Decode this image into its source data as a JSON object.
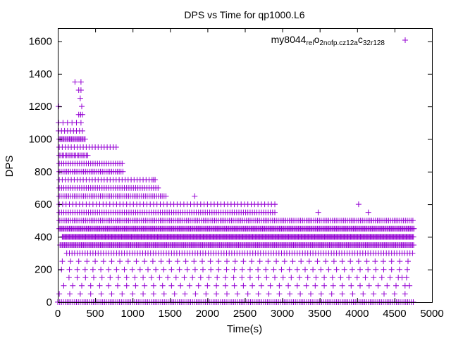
{
  "chart_data": {
    "type": "scatter",
    "title": "DPS vs Time for qp1000.L6",
    "xlabel": "Time(s)",
    "ylabel": "DPS",
    "xlim": [
      0,
      5000
    ],
    "ylim": [
      0,
      1680
    ],
    "xticks": [
      0,
      500,
      1000,
      1500,
      2000,
      2500,
      3000,
      3500,
      4000,
      4500,
      5000
    ],
    "yticks": [
      0,
      200,
      400,
      600,
      800,
      1000,
      1200,
      1400,
      1600
    ],
    "grid": false,
    "legend_position": "top-right",
    "marker": "plus",
    "color": "#9400d3",
    "series": [
      {
        "name": "my8044_rel_o2nofp.cz12a_c32r128",
        "name_parts": [
          {
            "text": "my8044",
            "sub": false
          },
          {
            "text": "rel",
            "sub": true
          },
          {
            "text": "o",
            "sub": false
          },
          {
            "text": "2nofp.cz12a",
            "sub": true
          },
          {
            "text": "c",
            "sub": false
          },
          {
            "text": "32r128",
            "sub": true
          }
        ],
        "rows": [
          {
            "y": 0,
            "x_start": 0,
            "x_end": 4760,
            "step": 25
          },
          {
            "y": 50,
            "x_start": 20,
            "x_end": 4740,
            "step": 140
          },
          {
            "y": 100,
            "x_start": 80,
            "x_end": 4700,
            "step": 120
          },
          {
            "y": 150,
            "x_start": 150,
            "x_end": 4720,
            "step": 110
          },
          {
            "y": 200,
            "x_start": 50,
            "x_end": 4740,
            "step": 105
          },
          {
            "y": 250,
            "x_start": 60,
            "x_end": 4700,
            "step": 110
          },
          {
            "y": 300,
            "x_start": 120,
            "x_end": 4760,
            "step": 35
          },
          {
            "y": 350,
            "x_start": 30,
            "x_end": 4760,
            "step": 15
          },
          {
            "y": 400,
            "x_start": 60,
            "x_end": 4760,
            "step": 12
          },
          {
            "y": 450,
            "x_start": 20,
            "x_end": 4760,
            "step": 15
          },
          {
            "y": 500,
            "x_start": 20,
            "x_end": 4760,
            "step": 25
          },
          {
            "y": 550,
            "x_start": 20,
            "x_end": 2900,
            "step": 30
          },
          {
            "y": 600,
            "x_start": 20,
            "x_end": 2900,
            "step": 45
          },
          {
            "y": 650,
            "x_start": 20,
            "x_end": 1450,
            "step": 25
          },
          {
            "y": 700,
            "x_start": 20,
            "x_end": 1350,
            "step": 30
          },
          {
            "y": 750,
            "x_start": 20,
            "x_end": 1300,
            "step": 40
          },
          {
            "y": 800,
            "x_start": 20,
            "x_end": 880,
            "step": 25
          },
          {
            "y": 850,
            "x_start": 20,
            "x_end": 860,
            "step": 30
          },
          {
            "y": 900,
            "x_start": 20,
            "x_end": 400,
            "step": 20
          },
          {
            "y": 950,
            "x_start": 20,
            "x_end": 800,
            "step": 40
          },
          {
            "y": 1000,
            "x_start": 20,
            "x_end": 370,
            "step": 15
          },
          {
            "y": 1050,
            "x_start": 10,
            "x_end": 360,
            "step": 40
          },
          {
            "y": 1100,
            "x_start": 10,
            "x_end": 340,
            "step": 60
          },
          {
            "y": 1150,
            "x_start": 280,
            "x_end": 330,
            "step": 25
          }
        ],
        "points": [
          {
            "x": 10,
            "y": 1200
          },
          {
            "x": 230,
            "y": 1350
          },
          {
            "x": 310,
            "y": 1350
          },
          {
            "x": 280,
            "y": 1300
          },
          {
            "x": 310,
            "y": 1300
          },
          {
            "x": 300,
            "y": 1250
          },
          {
            "x": 320,
            "y": 1200
          },
          {
            "x": 740,
            "y": 950
          },
          {
            "x": 1280,
            "y": 750
          },
          {
            "x": 1830,
            "y": 650
          },
          {
            "x": 2330,
            "y": 550
          },
          {
            "x": 2900,
            "y": 600
          },
          {
            "x": 3480,
            "y": 550
          },
          {
            "x": 4020,
            "y": 600
          },
          {
            "x": 4150,
            "y": 550
          },
          {
            "x": 4600,
            "y": 150
          },
          {
            "x": 4700,
            "y": 100
          }
        ]
      }
    ]
  }
}
